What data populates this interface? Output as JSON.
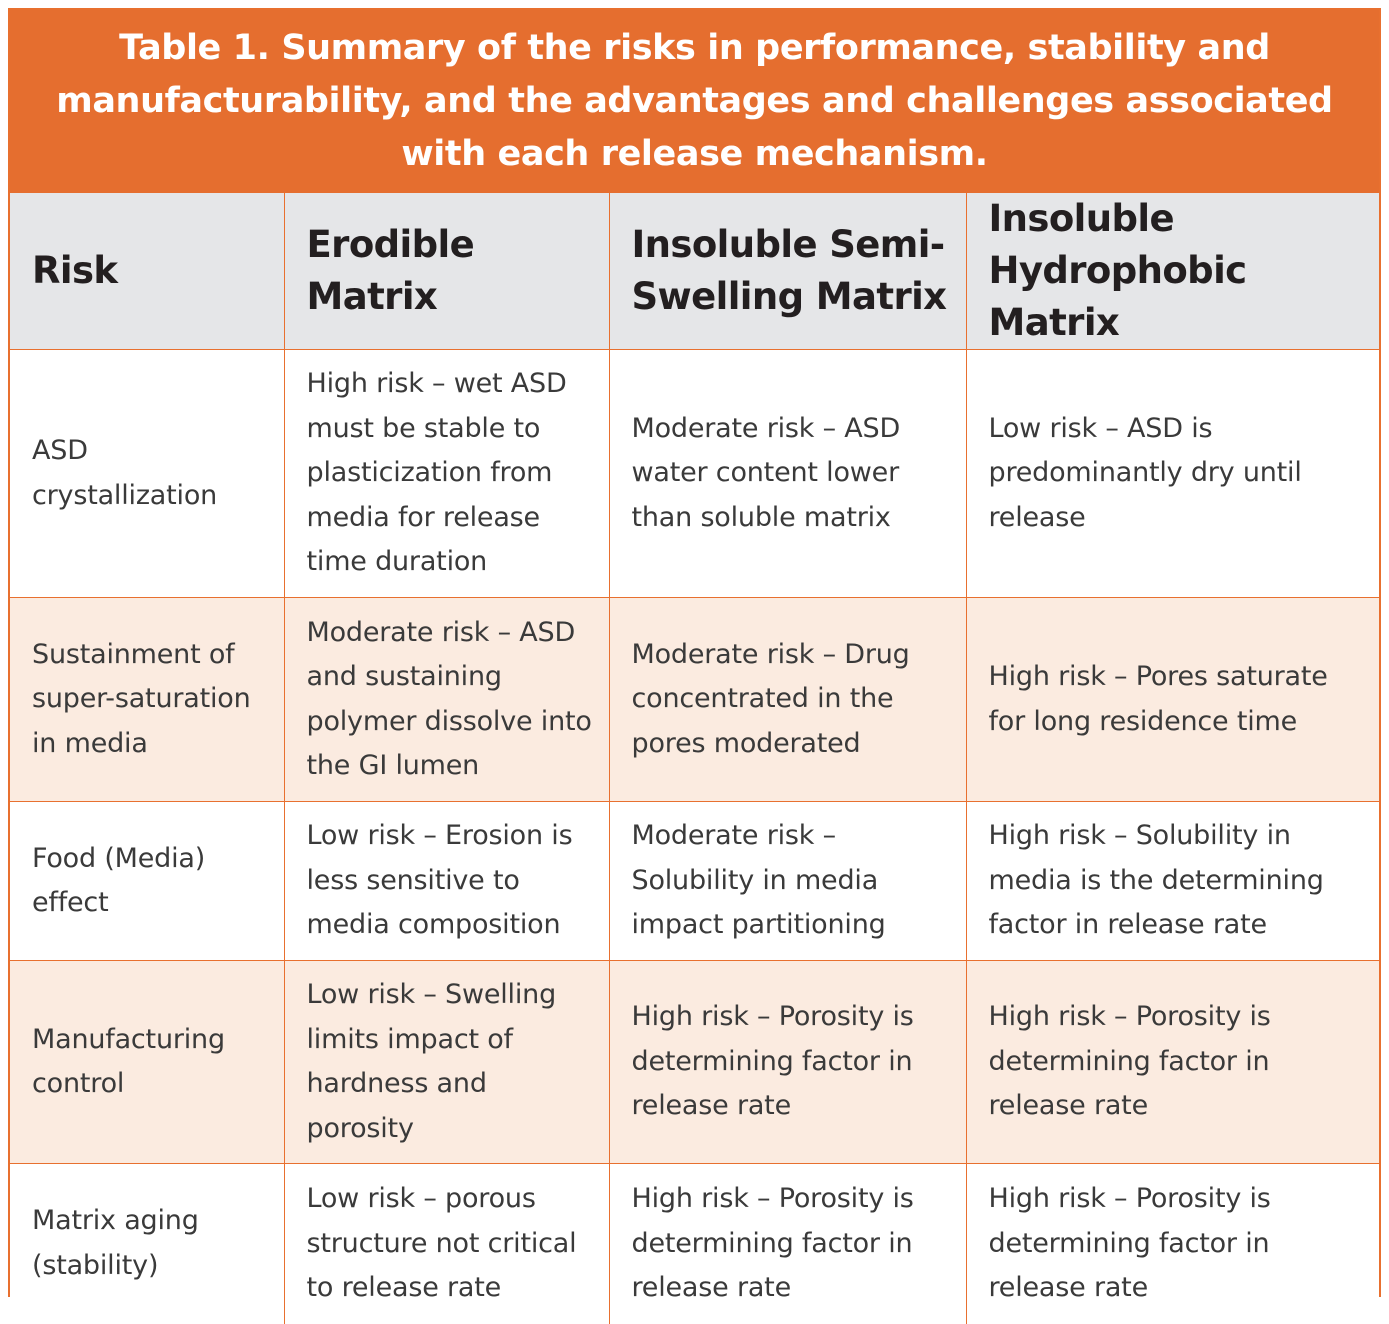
{
  "title": "Table 1. Summary of the risks in performance, stability and manufacturability, and the advantages and challenges associated with each release mechanism.",
  "colors": {
    "accent": "#e56e2f",
    "header_bg": "#e5e6e8",
    "tint_row_bg": "#fbebe0"
  },
  "columns": [
    "Risk",
    "Erodible Matrix",
    "Insoluble Semi-Swelling Matrix",
    "Insoluble Hydrophobic Matrix"
  ],
  "rows": [
    {
      "risk": "ASD crystallization",
      "erodible": "High risk – wet ASD must be stable to plasticization from media for release time duration",
      "semi_swelling": "Moderate risk – ASD water content lower than soluble matrix",
      "hydrophobic": "Low risk – ASD is predominantly dry until release"
    },
    {
      "risk": "Sustainment of super-saturation in media",
      "erodible": "Moderate risk – ASD and sustaining polymer dissolve into the GI lumen",
      "semi_swelling": "Moderate risk – Drug concentrated in the pores moderated",
      "hydrophobic": "High risk – Pores saturate for long residence time"
    },
    {
      "risk": "Food (Media) effect",
      "erodible": "Low risk – Erosion is less sensitive to media composition",
      "semi_swelling": "Moderate risk – Solubility in media impact partitioning",
      "hydrophobic": "High risk – Solubility in media is the determining factor in release rate"
    },
    {
      "risk": "Manufacturing control",
      "erodible": "Low risk – Swelling limits impact of hardness and porosity",
      "semi_swelling": "High risk – Porosity is determining factor in release rate",
      "hydrophobic": "High risk – Porosity is determining factor in release rate"
    },
    {
      "risk": "Matrix aging (stability)",
      "erodible": "Low risk – porous structure not critical to release rate",
      "semi_swelling": "High risk – Porosity is determining factor in release rate",
      "hydrophobic": "High risk – Porosity is determining factor in release rate"
    }
  ]
}
